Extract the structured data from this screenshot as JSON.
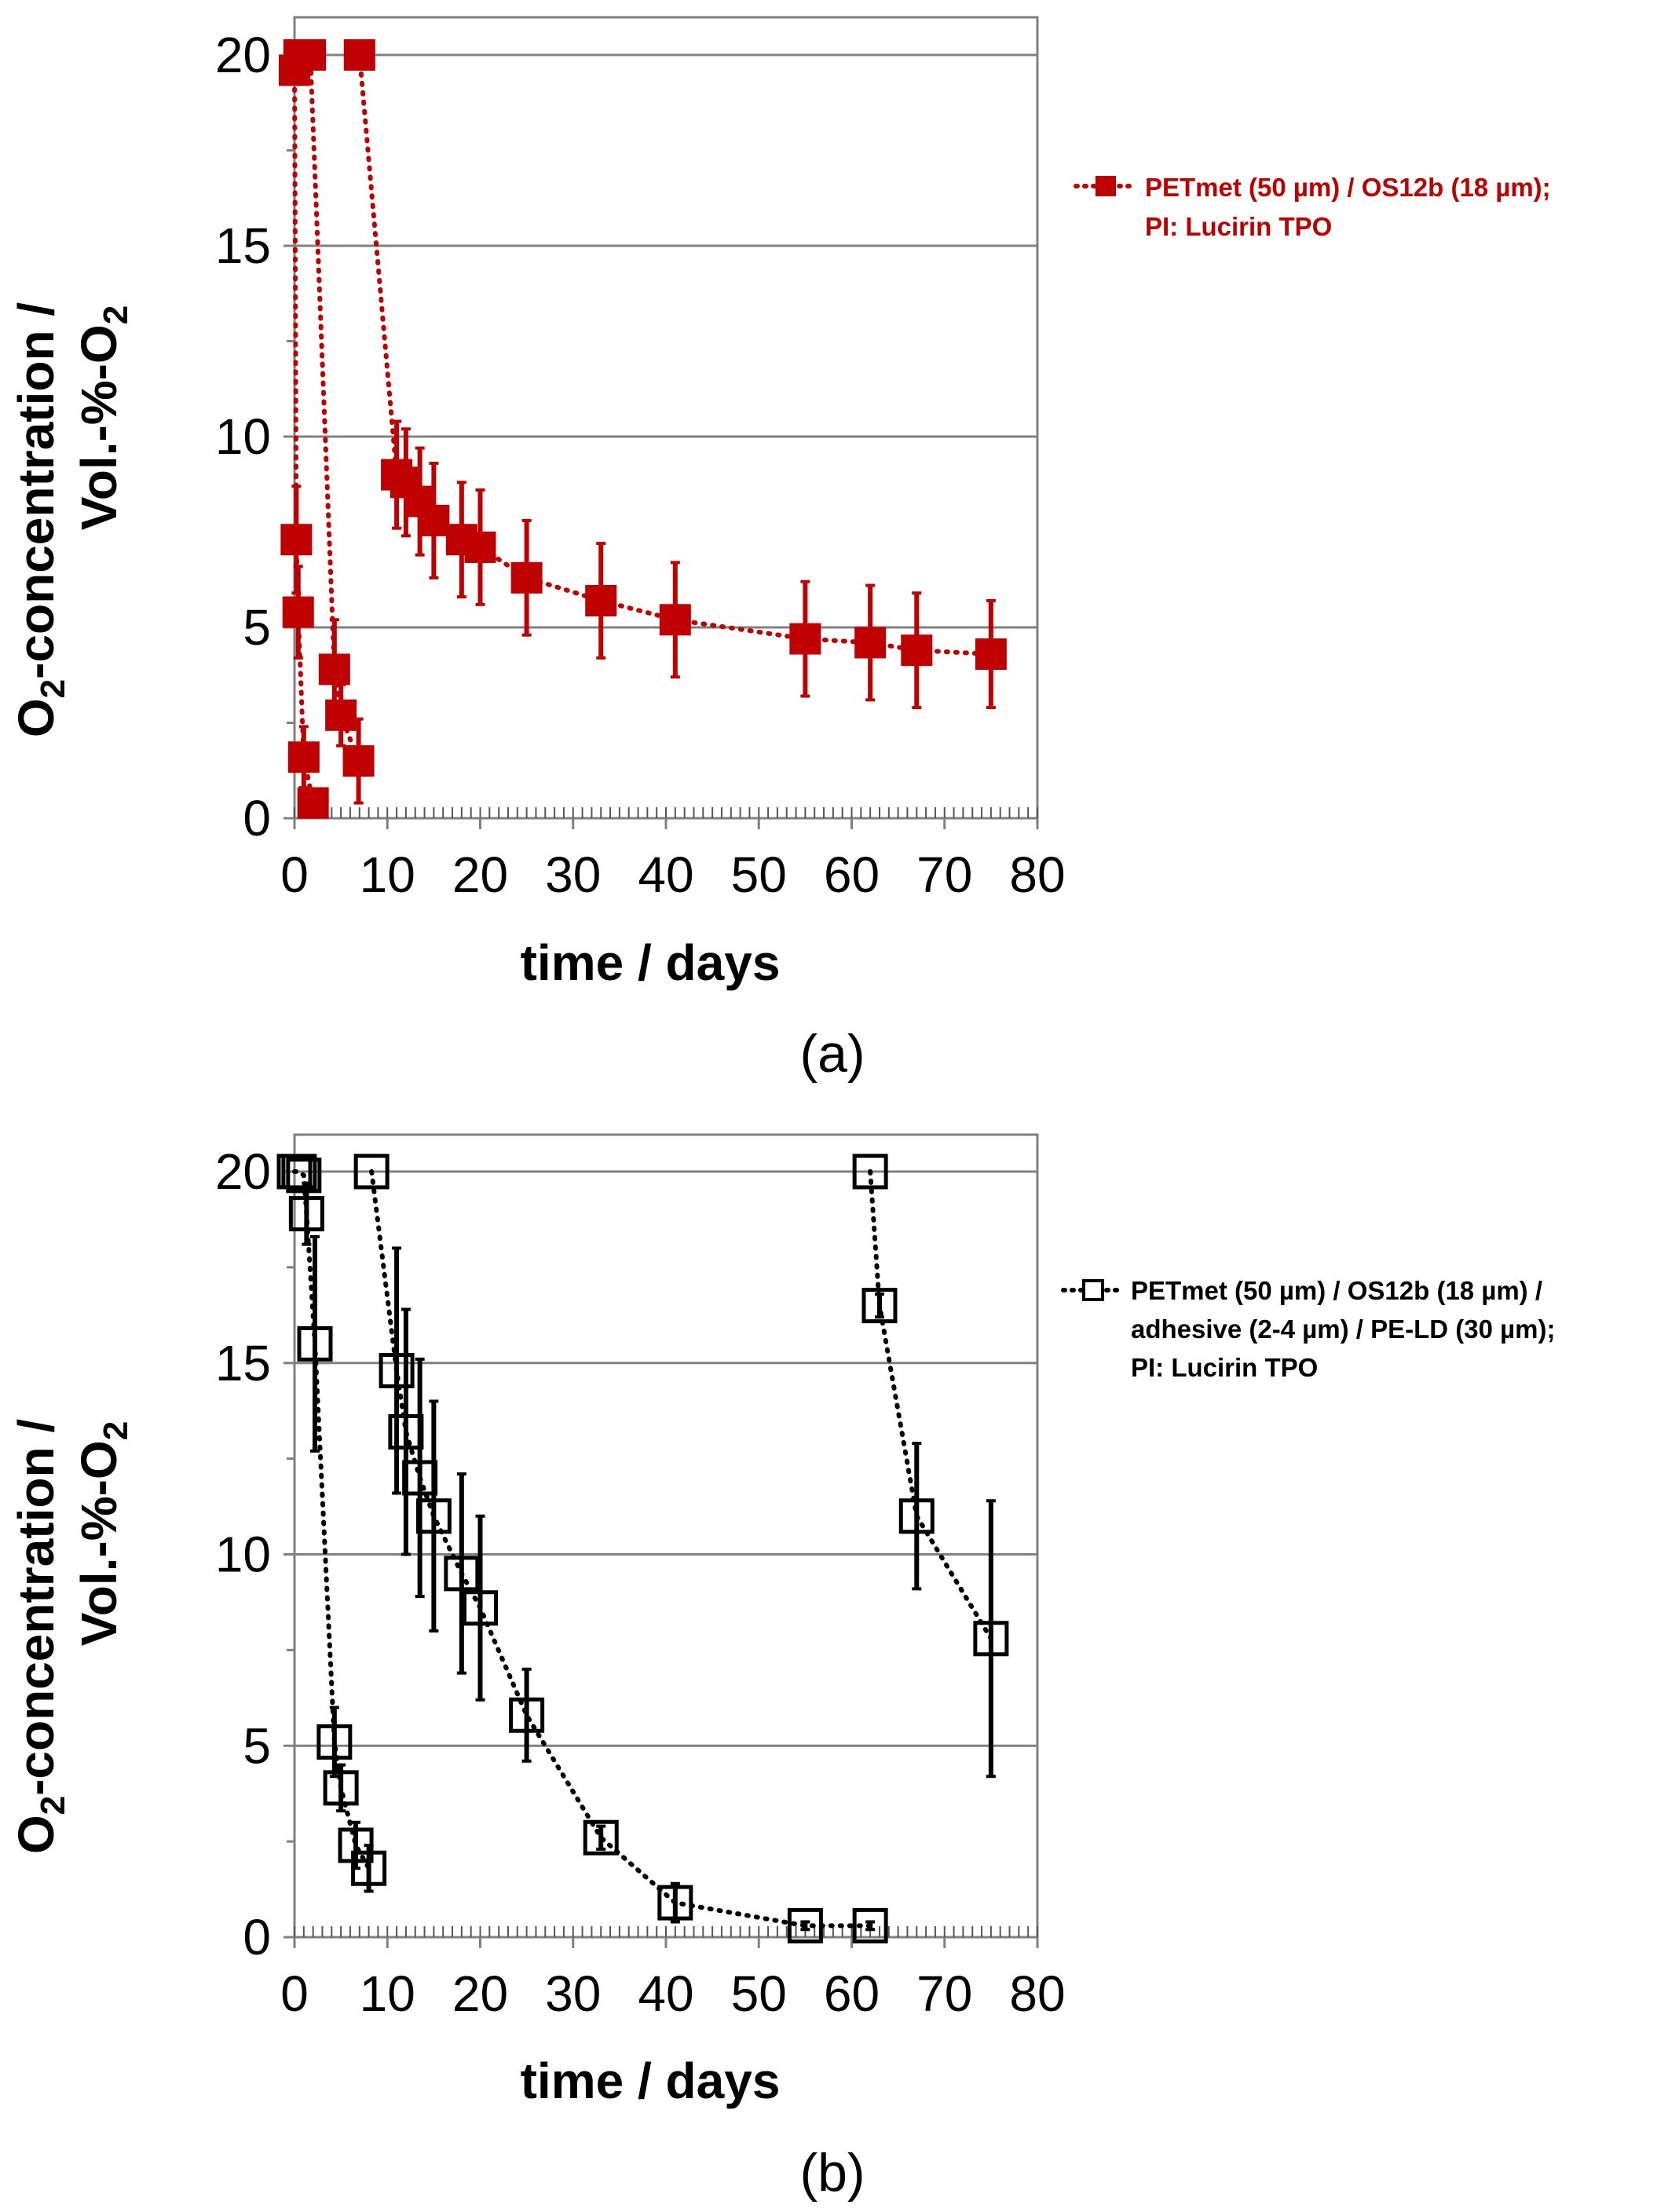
{
  "colors": {
    "panel_a": "#c00000",
    "panel_b": "#000000",
    "grid": "#808080"
  },
  "chart_data": [
    {
      "type": "scatter",
      "panel_label": "(a)",
      "xlabel": "time / days",
      "ylabel_line1_main": "O",
      "ylabel_line1_sub": "2",
      "ylabel_line1_rest": "-concentration /",
      "ylabel_line2_main": "Vol.-%-O",
      "ylabel_line2_sub": "2",
      "xlim": [
        0,
        80
      ],
      "ylim": [
        0,
        20
      ],
      "xticks": [
        0,
        10,
        20,
        30,
        40,
        50,
        60,
        70,
        80
      ],
      "yticks": [
        0,
        5,
        10,
        15,
        20
      ],
      "grid": "horizontal",
      "legend_position": "right",
      "series": [
        {
          "name_line1": "PETmet (50 µm) / OS12b (18 µm);",
          "name_line2": "PI: Lucirin TPO",
          "marker": "filled-square",
          "line": "dotted",
          "color": "#c00000",
          "segments": [
            [
              {
                "x": 0,
                "y": 19.6,
                "err": 0
              },
              {
                "x": 0.2,
                "y": 7.3,
                "err": 1.4
              },
              {
                "x": 0.4,
                "y": 5.4,
                "err": 1.2
              },
              {
                "x": 1.0,
                "y": 1.6,
                "err": 0.8
              },
              {
                "x": 2.0,
                "y": 0.4,
                "err": 0.3
              }
            ],
            [
              {
                "x": 0.5,
                "y": 20.0,
                "err": 0
              },
              {
                "x": 1.7,
                "y": 20.0,
                "err": 0
              },
              {
                "x": 4.3,
                "y": 3.9,
                "err": 1.3
              },
              {
                "x": 5.0,
                "y": 2.7,
                "err": 0.8
              },
              {
                "x": 6.9,
                "y": 1.5,
                "err": 1.1
              }
            ],
            [
              {
                "x": 7.0,
                "y": 20.0,
                "err": 0
              },
              {
                "x": 11.0,
                "y": 9.0,
                "err": 1.4
              },
              {
                "x": 12.0,
                "y": 8.8,
                "err": 1.4
              },
              {
                "x": 13.5,
                "y": 8.3,
                "err": 1.4
              },
              {
                "x": 15.0,
                "y": 7.8,
                "err": 1.5
              },
              {
                "x": 18.0,
                "y": 7.3,
                "err": 1.5
              },
              {
                "x": 20.0,
                "y": 7.1,
                "err": 1.5
              },
              {
                "x": 25.0,
                "y": 6.3,
                "err": 1.5
              },
              {
                "x": 33.0,
                "y": 5.7,
                "err": 1.5
              },
              {
                "x": 41.0,
                "y": 5.2,
                "err": 1.5
              },
              {
                "x": 55.0,
                "y": 4.7,
                "err": 1.5
              },
              {
                "x": 62.0,
                "y": 4.6,
                "err": 1.5
              },
              {
                "x": 67.0,
                "y": 4.4,
                "err": 1.5
              },
              {
                "x": 75.0,
                "y": 4.3,
                "err": 1.4
              }
            ]
          ]
        }
      ]
    },
    {
      "type": "scatter",
      "panel_label": "(b)",
      "xlabel": "time / days",
      "ylabel_line1_main": "O",
      "ylabel_line1_sub": "2",
      "ylabel_line1_rest": "-concentration /",
      "ylabel_line2_main": "Vol.-%-O",
      "ylabel_line2_sub": "2",
      "xlim": [
        0,
        80
      ],
      "ylim": [
        0,
        20
      ],
      "xticks": [
        0,
        10,
        20,
        30,
        40,
        50,
        60,
        70,
        80
      ],
      "yticks": [
        0,
        5,
        10,
        15,
        20
      ],
      "grid": "horizontal",
      "legend_position": "right",
      "series": [
        {
          "name_line1": "PETmet (50 µm) / OS12b (18 µm) /",
          "name_line2": "adhesive (2-4 µm) / PE-LD (30 µm);",
          "name_line3": "PI: Lucirin TPO",
          "marker": "open-square",
          "line": "dotted",
          "color": "#000000",
          "segments": [
            [
              {
                "x": 0,
                "y": 20.0,
                "err": 0
              },
              {
                "x": 0.5,
                "y": 20.0,
                "err": 0
              },
              {
                "x": 1.0,
                "y": 19.9,
                "err": 0
              },
              {
                "x": 1.3,
                "y": 18.9,
                "err": 0.8
              },
              {
                "x": 2.2,
                "y": 15.5,
                "err": 2.8
              },
              {
                "x": 4.3,
                "y": 5.1,
                "err": 0.9
              },
              {
                "x": 5.0,
                "y": 3.9,
                "err": 0.6
              },
              {
                "x": 6.6,
                "y": 2.4,
                "err": 0.6
              },
              {
                "x": 8.0,
                "y": 1.8,
                "err": 0.6
              }
            ],
            [
              {
                "x": 8.3,
                "y": 20.0,
                "err": 0
              },
              {
                "x": 11.0,
                "y": 14.8,
                "err": 3.2
              },
              {
                "x": 12.0,
                "y": 13.2,
                "err": 3.2
              },
              {
                "x": 13.5,
                "y": 12.0,
                "err": 3.1
              },
              {
                "x": 15.0,
                "y": 11.0,
                "err": 3.0
              },
              {
                "x": 18.0,
                "y": 9.5,
                "err": 2.6
              },
              {
                "x": 20.0,
                "y": 8.6,
                "err": 2.4
              },
              {
                "x": 25.0,
                "y": 5.8,
                "err": 1.2
              },
              {
                "x": 33.0,
                "y": 2.6,
                "err": 0.3
              },
              {
                "x": 41.0,
                "y": 0.9,
                "err": 0.5
              },
              {
                "x": 55.0,
                "y": 0.3,
                "err": 0.1
              },
              {
                "x": 62.0,
                "y": 0.3,
                "err": 0.1
              }
            ],
            [
              {
                "x": 62.0,
                "y": 20.0,
                "err": 0
              },
              {
                "x": 63.0,
                "y": 16.5,
                "err": 0.3
              },
              {
                "x": 67.0,
                "y": 11.0,
                "err": 1.9
              },
              {
                "x": 75.0,
                "y": 7.8,
                "err": 3.6
              }
            ]
          ]
        }
      ]
    }
  ]
}
